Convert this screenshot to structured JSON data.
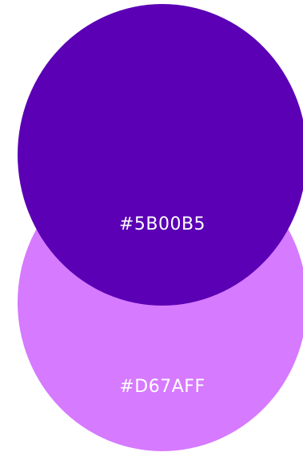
{
  "swatches": [
    {
      "hex": "#5B00B5",
      "label": "#5B00B5"
    },
    {
      "hex": "#D67AFF",
      "label": "#D67AFF"
    }
  ]
}
